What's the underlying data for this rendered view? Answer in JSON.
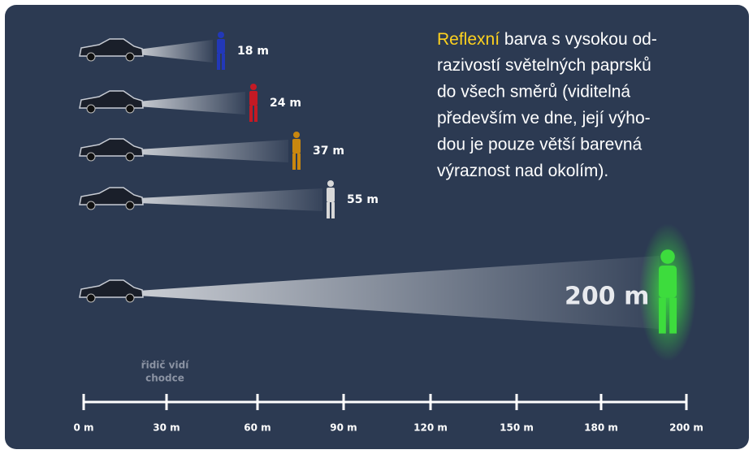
{
  "rows": [
    {
      "label": "18 m"
    },
    {
      "label": "24 m"
    },
    {
      "label": "37 m"
    },
    {
      "label": "55 m"
    },
    {
      "label": "200 m"
    }
  ],
  "caption": [
    "řidič vidí",
    "chodce"
  ],
  "text": {
    "highlight": "Reflexní",
    "lines": [
      "barva s vysokou od-",
      "razivostí světelných paprsků",
      "do všech směrů (viditelná",
      "především ve dne, její výho-",
      "dou je pouze větší barevná",
      "výraznost nad okolím)."
    ]
  },
  "scale": [
    "0 m",
    "30 m",
    "60 m",
    "90 m",
    "120 m",
    "150 m",
    "180 m",
    "200 m"
  ]
}
